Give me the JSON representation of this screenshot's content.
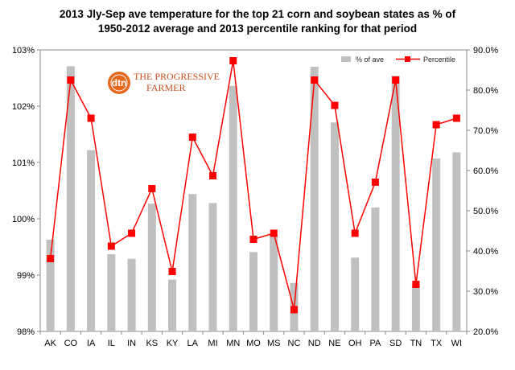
{
  "chart_data": {
    "type": "bar+line",
    "title_lines": [
      "2013 Jly-Sep ave temperature for the top 21 corn and soybean states as % of",
      "1950-2012 average and 2013 percentile ranking for that period"
    ],
    "categories": [
      "AK",
      "CO",
      "IA",
      "IL",
      "IN",
      "KS",
      "KY",
      "LA",
      "MI",
      "MN",
      "MO",
      "MS",
      "NC",
      "ND",
      "NE",
      "OH",
      "PA",
      "SD",
      "TN",
      "TX",
      "WI"
    ],
    "series": [
      {
        "name": "% of ave",
        "kind": "bar",
        "axis": "left",
        "color": "#c0c0c0",
        "values": [
          99.63,
          102.71,
          101.22,
          99.37,
          99.29,
          100.27,
          98.92,
          100.44,
          100.28,
          102.36,
          99.41,
          99.72,
          98.86,
          102.7,
          101.71,
          99.31,
          100.2,
          102.54,
          98.85,
          101.07,
          101.18
        ]
      },
      {
        "name": "Percentile",
        "kind": "line",
        "axis": "right",
        "color": "#ff0000",
        "values": [
          38.1,
          82.5,
          73.0,
          41.2,
          44.4,
          55.5,
          34.9,
          68.3,
          58.7,
          87.3,
          42.9,
          44.4,
          25.4,
          82.5,
          76.2,
          44.4,
          57.1,
          82.5,
          31.7,
          71.4,
          73.0
        ]
      }
    ],
    "y_left": {
      "min": 98,
      "max": 103,
      "step": 1,
      "tick_labels": [
        "98%",
        "99%",
        "100%",
        "101%",
        "102%",
        "103%"
      ]
    },
    "y_right": {
      "min": 20,
      "max": 90,
      "step": 10,
      "tick_labels": [
        "20.0%",
        "30.0%",
        "40.0%",
        "50.0%",
        "60.0%",
        "70.0%",
        "80.0%",
        "90.0%"
      ]
    },
    "grid": false,
    "legend_position": "top-right",
    "logo": {
      "mark": "dtn",
      "text_lines": [
        "THE PROGRESSIVE",
        "FARMER"
      ]
    }
  }
}
